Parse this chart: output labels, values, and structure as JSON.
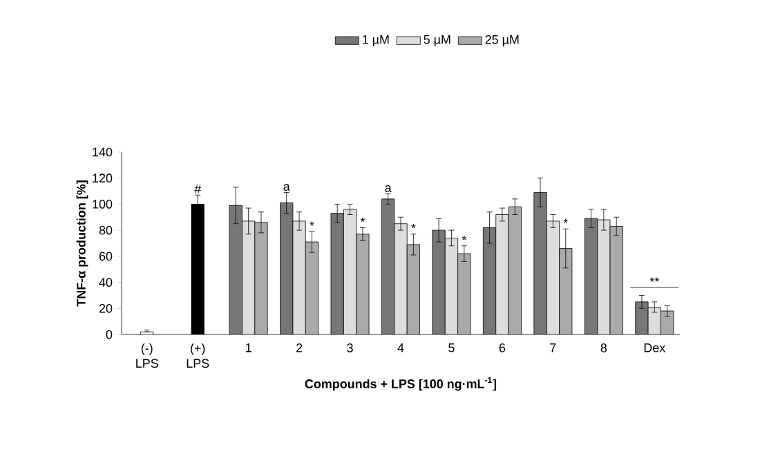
{
  "chart_data": {
    "type": "bar",
    "categories": [
      "(-) LPS",
      "(+) LPS",
      "1",
      "2",
      "3",
      "4",
      "5",
      "6",
      "7",
      "8",
      "Dex"
    ],
    "xlabel": "Compounds + LPS [100 ng·mL$^{-1}$]",
    "ylabel": "TNF-α production [%]",
    "ylim": [
      0,
      140
    ],
    "yticks": [
      0,
      20,
      40,
      60,
      80,
      100,
      120,
      140
    ],
    "legend": "top",
    "grid": false,
    "series": [
      {
        "colors": [
          "#ffffff",
          "#000000",
          null,
          null,
          null,
          null,
          null,
          null,
          null,
          null,
          null
        ],
        "values": [
          2,
          100,
          null,
          null,
          null,
          null,
          null,
          null,
          null,
          null,
          null
        ],
        "errors": [
          [
            2,
            3.5
          ],
          7,
          null,
          null,
          null,
          null,
          null,
          null,
          null,
          null,
          null
        ]
      },
      {
        "name": "1 µM",
        "color": "#777777",
        "values": [
          null,
          null,
          99,
          101,
          93,
          104,
          80,
          82,
          109,
          89,
          25
        ],
        "errors": [
          null,
          null,
          14,
          8,
          7,
          4,
          9,
          12,
          11,
          7,
          5
        ]
      },
      {
        "name": "5 µM",
        "color": "#dddddd",
        "values": [
          null,
          null,
          87,
          87,
          96,
          85,
          74,
          92,
          87,
          88,
          21
        ],
        "errors": [
          null,
          null,
          10,
          7,
          4,
          5,
          6,
          5,
          5,
          8,
          4
        ]
      },
      {
        "name": "25 µM",
        "color": "#aaaaaa",
        "values": [
          null,
          null,
          86,
          71,
          77,
          69,
          62,
          98,
          66,
          83,
          18
        ],
        "errors": [
          null,
          null,
          8,
          8,
          5,
          8,
          6,
          6,
          15,
          7,
          4
        ]
      }
    ],
    "annotations": [
      {
        "text": "#",
        "x": "(+) LPS",
        "y": 100
      },
      {
        "text": "a",
        "x": "2",
        "y": 101
      },
      {
        "text": "a",
        "x": "4",
        "y": 104
      },
      {
        "text": "*",
        "x": "2",
        "y": 71
      },
      {
        "text": "*",
        "x": "3",
        "y": 77
      },
      {
        "text": "*",
        "x": "4",
        "y": 69
      },
      {
        "text": "*",
        "x": "5",
        "y": 62
      },
      {
        "text": "*",
        "x": "7",
        "y": 66
      },
      "**"
    ]
  }
}
